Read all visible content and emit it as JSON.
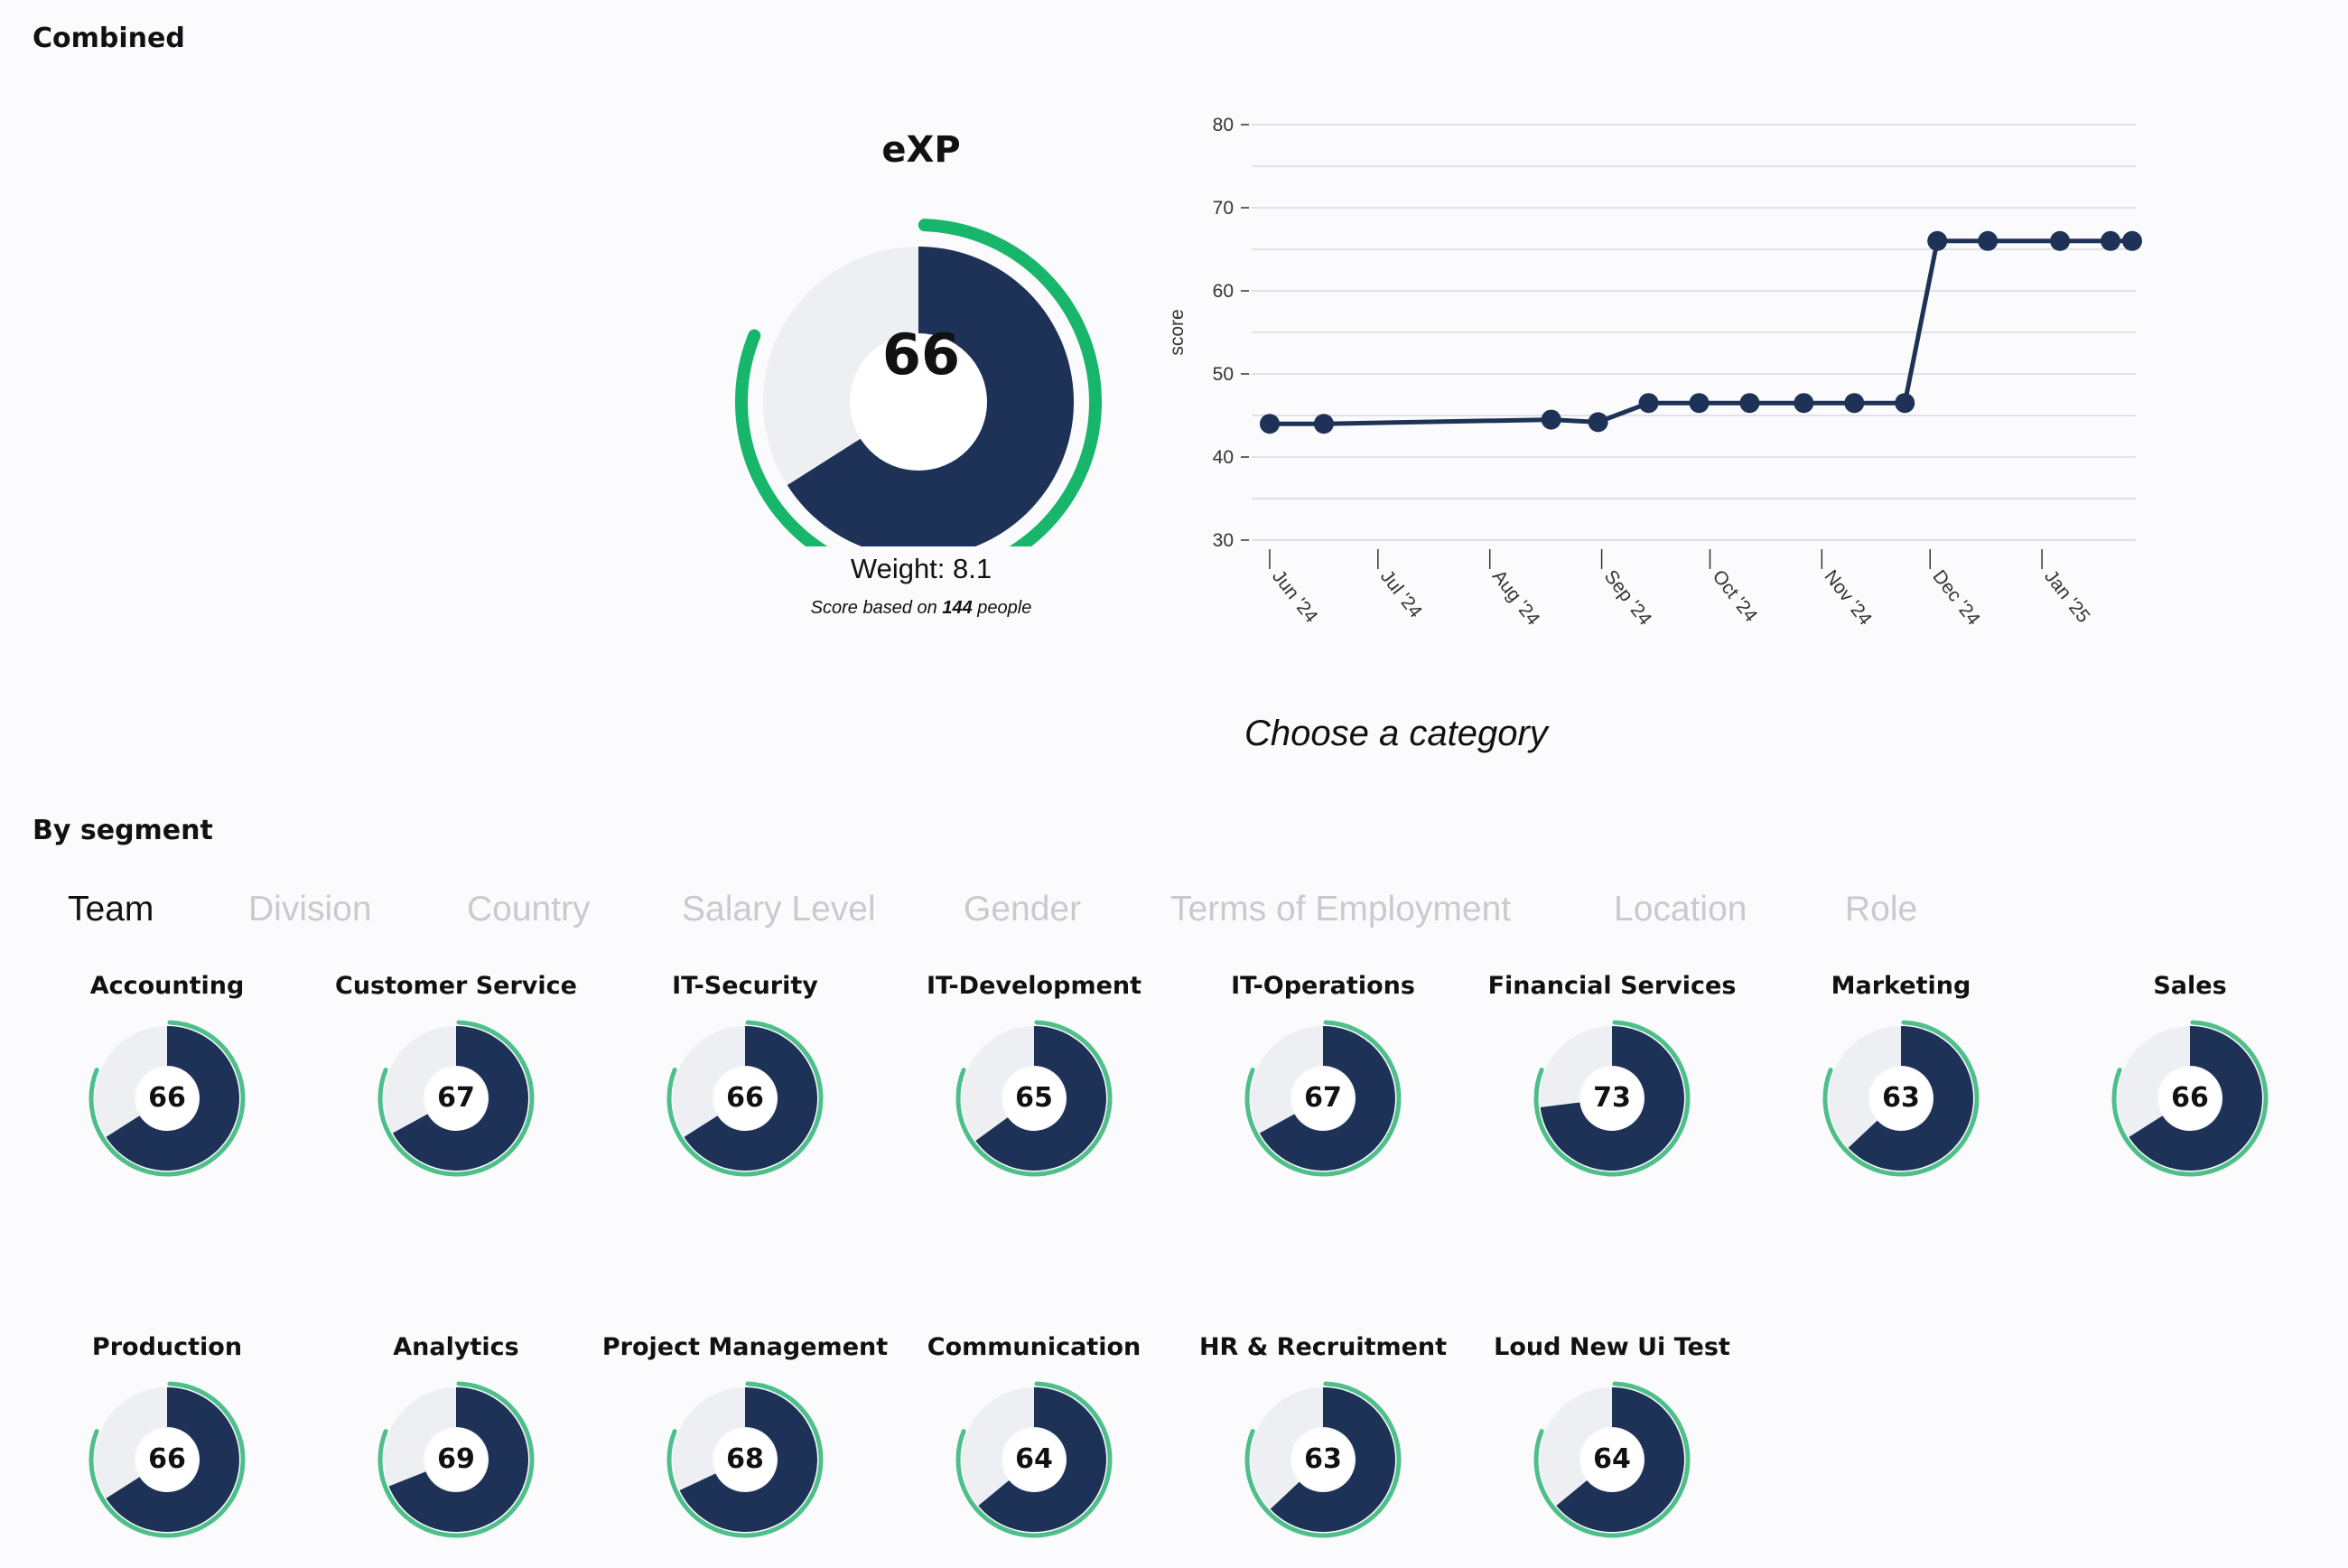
{
  "combined": {
    "title": "Combined"
  },
  "gauge": {
    "title": "eXP",
    "value": "66",
    "score": 66,
    "weight_text": "Weight: 8.1",
    "people_prefix": "Score based on",
    "people_count": "144",
    "people_suffix": "people"
  },
  "chart_data": {
    "type": "line",
    "ylabel": "score",
    "xlabel": "",
    "ylim": [
      30,
      80
    ],
    "yticks": [
      "30",
      "40",
      "50",
      "60",
      "70",
      "80"
    ],
    "xticks": [
      "Jun '24",
      "Jul '24",
      "Aug '24",
      "Sep '24",
      "Oct '24",
      "Nov '24",
      "Dec '24",
      "Jan '25"
    ],
    "x": [
      "2024-06-01",
      "2024-06-16",
      "2024-08-18",
      "2024-08-31",
      "2024-09-14",
      "2024-09-28",
      "2024-10-12",
      "2024-10-27",
      "2024-11-10",
      "2024-11-24",
      "2024-12-03",
      "2024-12-17",
      "2025-01-06",
      "2025-01-20",
      "2025-01-26"
    ],
    "values": [
      44,
      44,
      44.5,
      44.2,
      46.5,
      46.5,
      46.5,
      46.5,
      46.5,
      46.5,
      66,
      66,
      66,
      66,
      66
    ],
    "gridlines": true
  },
  "category_prompt": "Choose a category",
  "segment": {
    "title": "By segment",
    "tabs": [
      "Team",
      "Division",
      "Country",
      "Salary Level",
      "Gender",
      "Terms of Employment",
      "Location",
      "Role"
    ],
    "active_tab": "Team",
    "items": [
      {
        "label": "Accounting",
        "value": "66",
        "score": 66
      },
      {
        "label": "Customer Service",
        "value": "67",
        "score": 67
      },
      {
        "label": "IT-Security",
        "value": "66",
        "score": 66
      },
      {
        "label": "IT-Development",
        "value": "65",
        "score": 65
      },
      {
        "label": "IT-Operations",
        "value": "67",
        "score": 67
      },
      {
        "label": "Financial Services",
        "value": "73",
        "score": 73
      },
      {
        "label": "Marketing",
        "value": "63",
        "score": 63
      },
      {
        "label": "Sales",
        "value": "66",
        "score": 66
      },
      {
        "label": "Production",
        "value": "66",
        "score": 66
      },
      {
        "label": "Analytics",
        "value": "69",
        "score": 69
      },
      {
        "label": "Project Management",
        "value": "68",
        "score": 68
      },
      {
        "label": "Communication",
        "value": "64",
        "score": 64
      },
      {
        "label": "HR & Recruitment",
        "value": "63",
        "score": 63
      },
      {
        "label": "Loud New Ui Test",
        "value": "64",
        "score": 64
      }
    ]
  },
  "colors": {
    "navy": "#1e3257",
    "green": "#17b66a",
    "green_light": "#4fbf8a",
    "track": "#eeeff2"
  }
}
